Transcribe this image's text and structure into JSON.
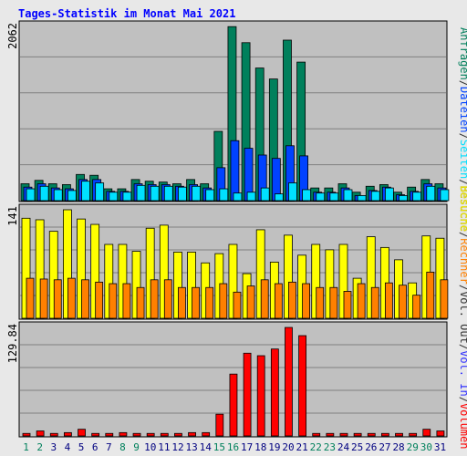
{
  "title": "Tages-Statistik im Monat Mai 2021",
  "right_labels": [
    {
      "text": "Anfragen",
      "color": "#00805c"
    },
    {
      "text": "/",
      "color": "#333333"
    },
    {
      "text": "Dateien",
      "color": "#0042ff"
    },
    {
      "text": "/",
      "color": "#333333"
    },
    {
      "text": "Seiten",
      "color": "#00e0ff"
    },
    {
      "text": "/",
      "color": "#333333"
    },
    {
      "text": "Besuche",
      "color": "#ffff00"
    },
    {
      "text": "/",
      "color": "#333333"
    },
    {
      "text": "Rechner",
      "color": "#ff8000"
    },
    {
      "text": "/",
      "color": "#333333"
    },
    {
      "text": "Vol. Out",
      "color": "#333333"
    },
    {
      "text": "/",
      "color": "#333333"
    },
    {
      "text": "Vol. In",
      "color": "#3333ff"
    },
    {
      "text": "/",
      "color": "#333333"
    },
    {
      "text": "Volumen",
      "color": "#ff0000"
    }
  ],
  "colors": {
    "background": "#e8e8e8",
    "panel": "#c0c0c0",
    "anfragen": "#00805c",
    "dateien": "#0042ff",
    "seiten": "#00e0ff",
    "besuche": "#ffff00",
    "rechner": "#ff8000",
    "volumen": "#ff0000",
    "weekday_label": "#000080",
    "weekend_label": "#00805c"
  },
  "chart_data": [
    {
      "type": "bar",
      "ymax_label": "2062",
      "ylim": [
        0,
        2062
      ],
      "categories": [
        "1",
        "2",
        "3",
        "4",
        "5",
        "6",
        "7",
        "8",
        "9",
        "10",
        "11",
        "12",
        "13",
        "14",
        "15",
        "16",
        "17",
        "18",
        "19",
        "20",
        "21",
        "22",
        "23",
        "24",
        "25",
        "26",
        "27",
        "28",
        "29",
        "30",
        "31"
      ],
      "weekend": [
        "1",
        "2",
        "8",
        "9",
        "15",
        "16",
        "22",
        "23",
        "29",
        "30"
      ],
      "series": [
        {
          "name": "Anfragen",
          "values": [
            200,
            240,
            200,
            190,
            310,
            300,
            140,
            140,
            250,
            230,
            220,
            200,
            250,
            200,
            820,
            2060,
            1870,
            1570,
            1440,
            1900,
            1640,
            150,
            150,
            200,
            100,
            170,
            190,
            100,
            160,
            250,
            200
          ]
        },
        {
          "name": "Dateien",
          "values": [
            160,
            200,
            150,
            140,
            250,
            250,
            110,
            110,
            200,
            190,
            190,
            170,
            190,
            150,
            390,
            710,
            620,
            540,
            500,
            650,
            530,
            100,
            100,
            150,
            60,
            120,
            160,
            70,
            110,
            200,
            150
          ]
        },
        {
          "name": "Seiten",
          "values": [
            140,
            170,
            130,
            120,
            230,
            210,
            100,
            100,
            180,
            170,
            170,
            160,
            170,
            130,
            140,
            90,
            100,
            150,
            80,
            210,
            130,
            90,
            90,
            130,
            60,
            110,
            150,
            60,
            100,
            170,
            130
          ]
        }
      ]
    },
    {
      "type": "bar",
      "ymax_label": "141",
      "ylim": [
        0,
        141
      ],
      "categories": [
        "1",
        "2",
        "3",
        "4",
        "5",
        "6",
        "7",
        "8",
        "9",
        "10",
        "11",
        "12",
        "13",
        "14",
        "15",
        "16",
        "17",
        "18",
        "19",
        "20",
        "21",
        "22",
        "23",
        "24",
        "25",
        "26",
        "27",
        "28",
        "29",
        "30",
        "31"
      ],
      "series": [
        {
          "name": "Besuche",
          "values": [
            130,
            128,
            113,
            141,
            129,
            122,
            96,
            96,
            87,
            117,
            121,
            86,
            86,
            72,
            84,
            96,
            58,
            115,
            73,
            108,
            82,
            96,
            89,
            96,
            52,
            106,
            92,
            76,
            46,
            107,
            104
          ]
        },
        {
          "name": "Rechner",
          "values": [
            52,
            51,
            50,
            52,
            50,
            47,
            45,
            45,
            40,
            50,
            50,
            40,
            40,
            40,
            45,
            34,
            42,
            50,
            45,
            47,
            45,
            40,
            40,
            35,
            45,
            40,
            46,
            43,
            30,
            60,
            50
          ]
        }
      ]
    },
    {
      "type": "bar",
      "ymax_label": "129.84",
      "ylim": [
        0,
        129.84
      ],
      "categories": [
        "1",
        "2",
        "3",
        "4",
        "5",
        "6",
        "7",
        "8",
        "9",
        "10",
        "11",
        "12",
        "13",
        "14",
        "15",
        "16",
        "17",
        "18",
        "19",
        "20",
        "21",
        "22",
        "23",
        "24",
        "25",
        "26",
        "27",
        "28",
        "29",
        "30",
        "31"
      ],
      "series": [
        {
          "name": "Volumen",
          "values": [
            3,
            6,
            3,
            4,
            8,
            3,
            3,
            4,
            3,
            3,
            3,
            3,
            4,
            4,
            26,
            74,
            99,
            96,
            104,
            129.8,
            120,
            3,
            3,
            3,
            3,
            3,
            3,
            3,
            3,
            8,
            6
          ]
        }
      ]
    }
  ]
}
